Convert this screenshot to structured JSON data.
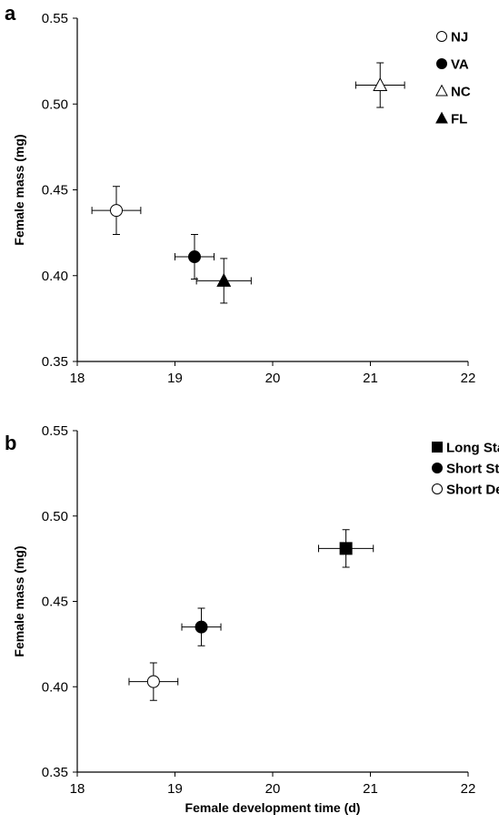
{
  "chart_data": [
    {
      "panel_label": "a",
      "type": "scatter",
      "xlabel": "",
      "ylabel": "Female mass (mg)",
      "xlim": [
        18,
        22
      ],
      "ylim": [
        0.35,
        0.55
      ],
      "xticks": [
        "18",
        "19",
        "20",
        "21",
        "22"
      ],
      "yticks": [
        "0.35",
        "0.40",
        "0.45",
        "0.50",
        "0.55"
      ],
      "grid": false,
      "legend_position": "top-right",
      "series": [
        {
          "name": "NJ",
          "marker": "circle",
          "fill": "open",
          "x": 18.4,
          "y": 0.438,
          "xerr": 0.25,
          "yerr": 0.014
        },
        {
          "name": "VA",
          "marker": "circle",
          "fill": "filled",
          "x": 19.2,
          "y": 0.411,
          "xerr": 0.2,
          "yerr": 0.013
        },
        {
          "name": "NC",
          "marker": "triangle",
          "fill": "open",
          "x": 21.1,
          "y": 0.511,
          "xerr": 0.25,
          "yerr": 0.013
        },
        {
          "name": "FL",
          "marker": "triangle",
          "fill": "filled",
          "x": 19.5,
          "y": 0.397,
          "xerr": 0.28,
          "yerr": 0.013
        }
      ]
    },
    {
      "panel_label": "b",
      "type": "scatter",
      "xlabel": "Female development time (d)",
      "ylabel": "Female mass (mg)",
      "xlim": [
        18,
        22
      ],
      "ylim": [
        0.35,
        0.55
      ],
      "xticks": [
        "18",
        "19",
        "20",
        "21",
        "22"
      ],
      "yticks": [
        "0.35",
        "0.40",
        "0.45",
        "0.50",
        "0.55"
      ],
      "grid": false,
      "legend_position": "top-right",
      "series": [
        {
          "name": "Long Stable",
          "marker": "square",
          "fill": "filled",
          "x": 20.75,
          "y": 0.481,
          "xerr": 0.28,
          "yerr": 0.011
        },
        {
          "name": "Short Stable",
          "marker": "circle",
          "fill": "filled",
          "x": 19.27,
          "y": 0.435,
          "xerr": 0.2,
          "yerr": 0.011
        },
        {
          "name": "Short Declining",
          "marker": "circle",
          "fill": "open",
          "x": 18.78,
          "y": 0.403,
          "xerr": 0.25,
          "yerr": 0.011
        }
      ]
    }
  ]
}
